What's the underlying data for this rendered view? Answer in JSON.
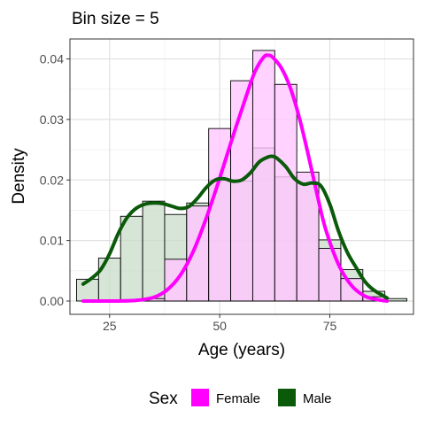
{
  "chart_data": {
    "type": "histogram-density",
    "title": "Bin size = 5",
    "xlabel": "Age (years)",
    "ylabel": "Density",
    "xlim": [
      16,
      94
    ],
    "ylim": [
      -0.0022,
      0.0433
    ],
    "x_ticks": [
      25,
      50,
      75
    ],
    "y_ticks": [
      0.0,
      0.01,
      0.02,
      0.03,
      0.04
    ],
    "x_tick_labels": [
      "25",
      "50",
      "75"
    ],
    "y_tick_labels": [
      "0.00",
      "0.01",
      "0.02",
      "0.03",
      "0.04"
    ],
    "grid": true,
    "legend_position": "bottom",
    "legend_title": "Sex",
    "bin_width": 5,
    "bin_starts": [
      17.5,
      22.5,
      27.5,
      32.5,
      37.5,
      42.5,
      47.5,
      52.5,
      57.5,
      62.5,
      67.5,
      72.5,
      77.5,
      82.5,
      87.5
    ],
    "series": [
      {
        "name": "Female",
        "color": "#ff00ff",
        "fill": "#ffc7ff",
        "histogram": [
          0,
          0,
          0,
          0.0004,
          0.0069,
          0.0157,
          0.0285,
          0.0364,
          0.0414,
          0.0358,
          0.0213,
          0.0087,
          0.0037,
          0.0007,
          0
        ],
        "density_x": [
          19,
          23,
          27,
          31,
          35,
          38,
          41,
          44,
          47,
          50,
          53,
          56,
          58,
          60,
          61,
          62,
          64,
          66,
          68,
          70,
          72,
          74,
          77,
          80,
          83,
          86,
          88
        ],
        "density_y": [
          0,
          0,
          0,
          0.0001,
          0.0006,
          0.0018,
          0.0042,
          0.0082,
          0.0138,
          0.0203,
          0.0272,
          0.0338,
          0.0379,
          0.0403,
          0.0406,
          0.0403,
          0.0385,
          0.0353,
          0.0305,
          0.0245,
          0.018,
          0.012,
          0.006,
          0.0025,
          0.0008,
          0.0002,
          0
        ]
      },
      {
        "name": "Male",
        "color": "#0a5a0a",
        "fill": "#c8dcc8",
        "histogram": [
          0.0036,
          0.0071,
          0.014,
          0.0165,
          0.0143,
          0.0162,
          0.02,
          0.0198,
          0.0253,
          0.0205,
          0.0195,
          0.0101,
          0.0052,
          0.0016,
          0.0004
        ],
        "density_x": [
          19,
          21,
          23,
          25,
          27,
          29,
          31,
          33,
          35,
          37,
          39,
          41,
          43,
          45,
          47,
          49,
          51,
          53,
          55,
          57,
          59,
          61,
          62,
          63,
          65,
          67,
          69,
          71,
          73,
          75,
          77,
          79,
          81,
          83,
          85,
          88
        ],
        "density_y": [
          0.0028,
          0.0038,
          0.0052,
          0.0078,
          0.0112,
          0.0138,
          0.0153,
          0.016,
          0.0162,
          0.0161,
          0.0157,
          0.0153,
          0.0156,
          0.017,
          0.0188,
          0.02,
          0.0202,
          0.0198,
          0.02,
          0.0212,
          0.023,
          0.0238,
          0.0239,
          0.0236,
          0.0222,
          0.0202,
          0.0193,
          0.0195,
          0.019,
          0.016,
          0.0115,
          0.008,
          0.0055,
          0.0032,
          0.0018,
          0.0005
        ]
      }
    ]
  }
}
